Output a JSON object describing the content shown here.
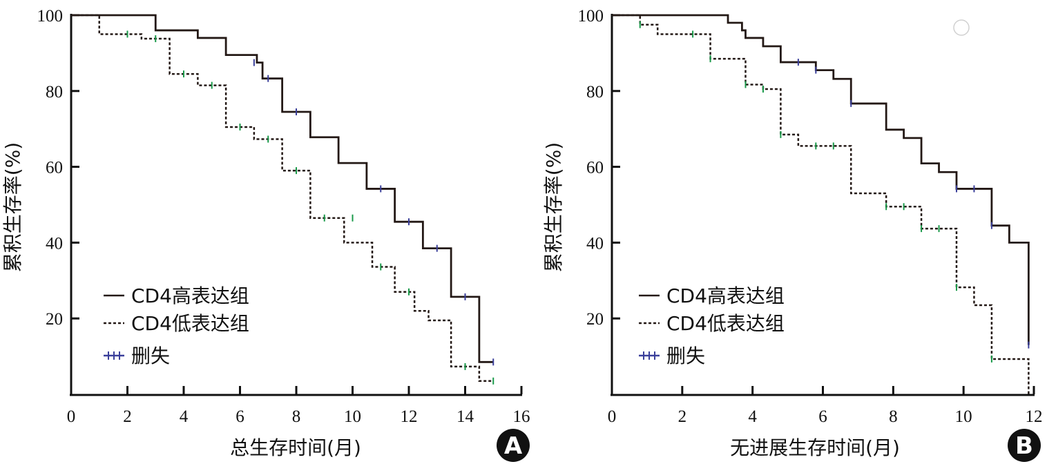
{
  "colors": {
    "line": "#231815",
    "censor_high": "#3a3f9a",
    "censor_low": "#1a9a4a"
  },
  "chart_data": [
    {
      "type": "line",
      "panel_label": "A",
      "xlabel": "总生存时间(月)",
      "ylabel": "累积生存率(%)",
      "xlim": [
        0,
        16
      ],
      "ylim": [
        0,
        100
      ],
      "xticks": [
        "0",
        "2",
        "4",
        "6",
        "8",
        "10",
        "12",
        "14",
        "16"
      ],
      "yticks": [
        "20",
        "40",
        "60",
        "80",
        "100"
      ],
      "legend": {
        "position": "bottom-left",
        "entries": [
          "CD4高表达组",
          "CD4低表达组",
          "删失"
        ]
      },
      "series": [
        {
          "name": "CD4高表达组",
          "style": "solid",
          "steps": [
            [
              0,
              100
            ],
            [
              3,
              96
            ],
            [
              4.5,
              94
            ],
            [
              5.5,
              89.5
            ],
            [
              6.6,
              87.5
            ],
            [
              6.8,
              83.3
            ],
            [
              7.5,
              74.5
            ],
            [
              8.5,
              67.8
            ],
            [
              9.5,
              61
            ],
            [
              10.5,
              54.2
            ],
            [
              11.5,
              45.5
            ],
            [
              12.5,
              38.5
            ],
            [
              13.5,
              25.7
            ],
            [
              14.5,
              8.5
            ]
          ],
          "end": 15,
          "censored": [
            [
              6.5,
              87.5
            ],
            [
              7,
              83.3
            ],
            [
              8,
              74.5
            ],
            [
              11,
              54.2
            ],
            [
              12,
              45.5
            ],
            [
              13,
              38.5
            ],
            [
              14,
              25.7
            ],
            [
              15,
              8.5
            ]
          ]
        },
        {
          "name": "CD4低表达组",
          "style": "dotted",
          "steps": [
            [
              0,
              100
            ],
            [
              1,
              95
            ],
            [
              2.5,
              93.8
            ],
            [
              3.5,
              84.5
            ],
            [
              4.5,
              81.5
            ],
            [
              5.5,
              70.5
            ],
            [
              6.5,
              67.3
            ],
            [
              7.5,
              59
            ],
            [
              8.5,
              46.5
            ],
            [
              9.7,
              40
            ],
            [
              10.7,
              33.6
            ],
            [
              11.5,
              27
            ],
            [
              12.2,
              22
            ],
            [
              12.7,
              19.5
            ],
            [
              13.5,
              7.3
            ],
            [
              14.5,
              3.5
            ]
          ],
          "end": 15,
          "censored": [
            [
              2,
              95
            ],
            [
              3,
              93.8
            ],
            [
              4,
              84.5
            ],
            [
              5,
              81.5
            ],
            [
              6,
              70.5
            ],
            [
              7,
              67.3
            ],
            [
              8,
              59
            ],
            [
              9,
              46.5
            ],
            [
              10,
              46.5
            ],
            [
              11,
              33.6
            ],
            [
              12,
              27
            ],
            [
              14,
              7.3
            ],
            [
              15,
              3.5
            ]
          ]
        }
      ]
    },
    {
      "type": "line",
      "panel_label": "B",
      "xlabel": "无进展生存时间(月)",
      "ylabel": "累积生存率(%)",
      "xlim": [
        0,
        12
      ],
      "ylim": [
        0,
        100
      ],
      "xticks": [
        "0",
        "2",
        "4",
        "6",
        "8",
        "10",
        "12"
      ],
      "yticks": [
        "20",
        "40",
        "60",
        "80",
        "100"
      ],
      "legend": {
        "position": "bottom-left",
        "entries": [
          "CD4高表达组",
          "CD4低表达组",
          "删失"
        ]
      },
      "series": [
        {
          "name": "CD4高表达组",
          "style": "solid",
          "steps": [
            [
              0,
              100
            ],
            [
              3.3,
              98
            ],
            [
              3.7,
              96
            ],
            [
              3.8,
              94
            ],
            [
              4.3,
              91.8
            ],
            [
              4.8,
              87.6
            ],
            [
              5.8,
              85.5
            ],
            [
              6.3,
              83.2
            ],
            [
              6.8,
              76.7
            ],
            [
              7.8,
              69.8
            ],
            [
              8.3,
              67.6
            ],
            [
              8.8,
              60.9
            ],
            [
              9.3,
              58.6
            ],
            [
              9.8,
              54.2
            ],
            [
              10.8,
              44.5
            ],
            [
              11.3,
              40
            ],
            [
              11.85,
              13
            ]
          ],
          "end": 11.85,
          "censored": [
            [
              5.3,
              87.6
            ],
            [
              5.8,
              85.5
            ],
            [
              6.8,
              76.7
            ],
            [
              9.8,
              54.2
            ],
            [
              10.3,
              54.2
            ],
            [
              10.8,
              44.5
            ],
            [
              11.85,
              13
            ]
          ]
        },
        {
          "name": "CD4低表达组",
          "style": "dotted",
          "steps": [
            [
              0,
              100
            ],
            [
              0.8,
              97.5
            ],
            [
              1.3,
              95
            ],
            [
              2.8,
              88.5
            ],
            [
              3.8,
              81.7
            ],
            [
              4.3,
              80.5
            ],
            [
              4.8,
              68.5
            ],
            [
              5.3,
              65.5
            ],
            [
              6.8,
              53
            ],
            [
              7.8,
              49.5
            ],
            [
              8.8,
              43.7
            ],
            [
              9.8,
              28.2
            ],
            [
              10.3,
              23.5
            ],
            [
              10.8,
              9.3
            ],
            [
              11.85,
              0
            ]
          ],
          "end": 11.85,
          "censored": [
            [
              0.8,
              97.5
            ],
            [
              2.3,
              95
            ],
            [
              2.8,
              88.5
            ],
            [
              3.8,
              81.7
            ],
            [
              4.3,
              80.5
            ],
            [
              4.8,
              68.5
            ],
            [
              5.8,
              65.5
            ],
            [
              6.3,
              65.5
            ],
            [
              7.8,
              49.5
            ],
            [
              8.3,
              49.5
            ],
            [
              8.8,
              43.7
            ],
            [
              9.3,
              43.7
            ],
            [
              9.8,
              28.2
            ],
            [
              10.8,
              9.3
            ]
          ]
        }
      ]
    }
  ]
}
